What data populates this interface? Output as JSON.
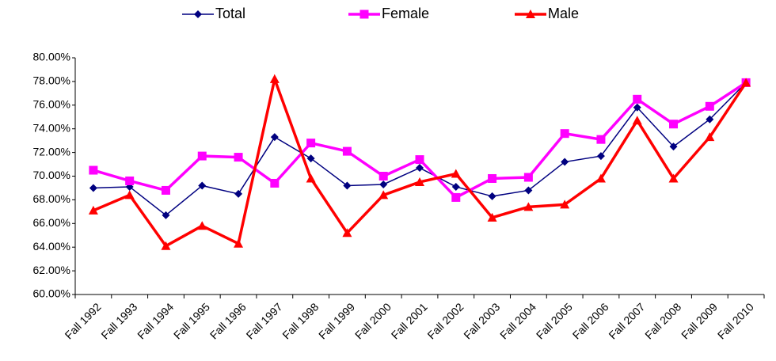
{
  "chart_data": {
    "type": "line",
    "categories": [
      "Fall 1992",
      "Fall 1993",
      "Fall 1994",
      "Fall 1995",
      "Fall 1996",
      "Fall 1997",
      "Fall 1998",
      "Fall 1999",
      "Fall 2000",
      "Fall 2001",
      "Fall 2002",
      "Fall 2003",
      "Fall 2004",
      "Fall 2005",
      "Fall 2006",
      "Fall 2007",
      "Fall 2008",
      "Fall 2009",
      "Fall 2010"
    ],
    "series": [
      {
        "name": "Total",
        "color": "#000080",
        "marker": "diamond",
        "values": [
          69.0,
          69.1,
          66.7,
          69.2,
          68.5,
          73.3,
          71.5,
          69.2,
          69.3,
          70.7,
          69.1,
          68.3,
          68.8,
          71.2,
          71.7,
          75.8,
          72.5,
          74.8,
          77.9
        ]
      },
      {
        "name": "Female",
        "color": "#ff00ff",
        "marker": "square",
        "values": [
          70.5,
          69.6,
          68.8,
          71.7,
          71.6,
          69.4,
          72.8,
          72.1,
          70.0,
          71.4,
          68.2,
          69.8,
          69.9,
          73.6,
          73.1,
          76.5,
          74.4,
          75.9,
          77.9
        ]
      },
      {
        "name": "Male",
        "color": "#ff0000",
        "marker": "triangle",
        "values": [
          67.1,
          68.4,
          64.1,
          65.8,
          64.3,
          78.2,
          69.8,
          65.2,
          68.4,
          69.5,
          70.2,
          66.5,
          67.4,
          67.6,
          69.8,
          74.7,
          69.8,
          73.3,
          77.9
        ]
      }
    ],
    "ylim": [
      60,
      80
    ],
    "yticks": [
      {
        "value": 60,
        "label": "60.00%"
      },
      {
        "value": 62,
        "label": "62.00%"
      },
      {
        "value": 64,
        "label": "64.00%"
      },
      {
        "value": 66,
        "label": "66.00%"
      },
      {
        "value": 68,
        "label": "68.00%"
      },
      {
        "value": 70,
        "label": "70.00%"
      },
      {
        "value": 72,
        "label": "72.00%"
      },
      {
        "value": 74,
        "label": "74.00%"
      },
      {
        "value": 76,
        "label": "76.00%"
      },
      {
        "value": 78,
        "label": "78.00%"
      },
      {
        "value": 80,
        "label": "80.00%"
      }
    ],
    "grid": false,
    "legend": "top"
  }
}
